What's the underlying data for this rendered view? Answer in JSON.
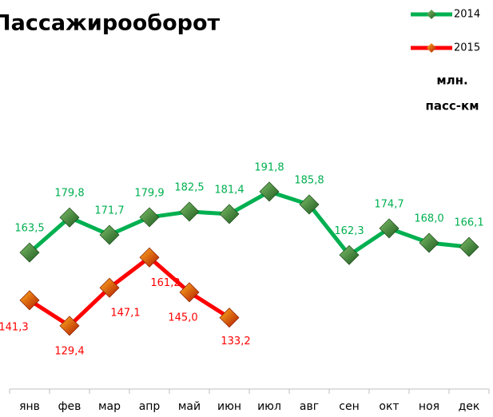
{
  "chart_data": {
    "type": "line",
    "title": "Пассажирооборот",
    "unit_label": [
      "млн.",
      "пасс-км"
    ],
    "categories": [
      "янв",
      "фев",
      "мар",
      "апр",
      "май",
      "июн",
      "июл",
      "авг",
      "сен",
      "окт",
      "ноя",
      "дек"
    ],
    "series": [
      {
        "name": "2014",
        "color": "#00b050",
        "values": [
          163.5,
          179.8,
          171.7,
          179.9,
          182.5,
          181.4,
          191.8,
          185.8,
          162.3,
          174.7,
          168.0,
          166.1
        ],
        "value_labels": [
          "163,5",
          "179,8",
          "171,7",
          "179,9",
          "182,5",
          "181,4",
          "191,8",
          "185,8",
          "162,3",
          "174,7",
          "168,0",
          "166,1"
        ]
      },
      {
        "name": "2015",
        "color": "#ff0000",
        "values": [
          141.3,
          129.4,
          147.1,
          161.2,
          145.0,
          133.2,
          null,
          null,
          null,
          null,
          null,
          null
        ],
        "value_labels": [
          "141,3",
          "129,4",
          "147,1",
          "161,2",
          "145,0",
          "133,2",
          null,
          null,
          null,
          null,
          null,
          null
        ]
      }
    ],
    "ylim": [
      100,
      220
    ]
  }
}
